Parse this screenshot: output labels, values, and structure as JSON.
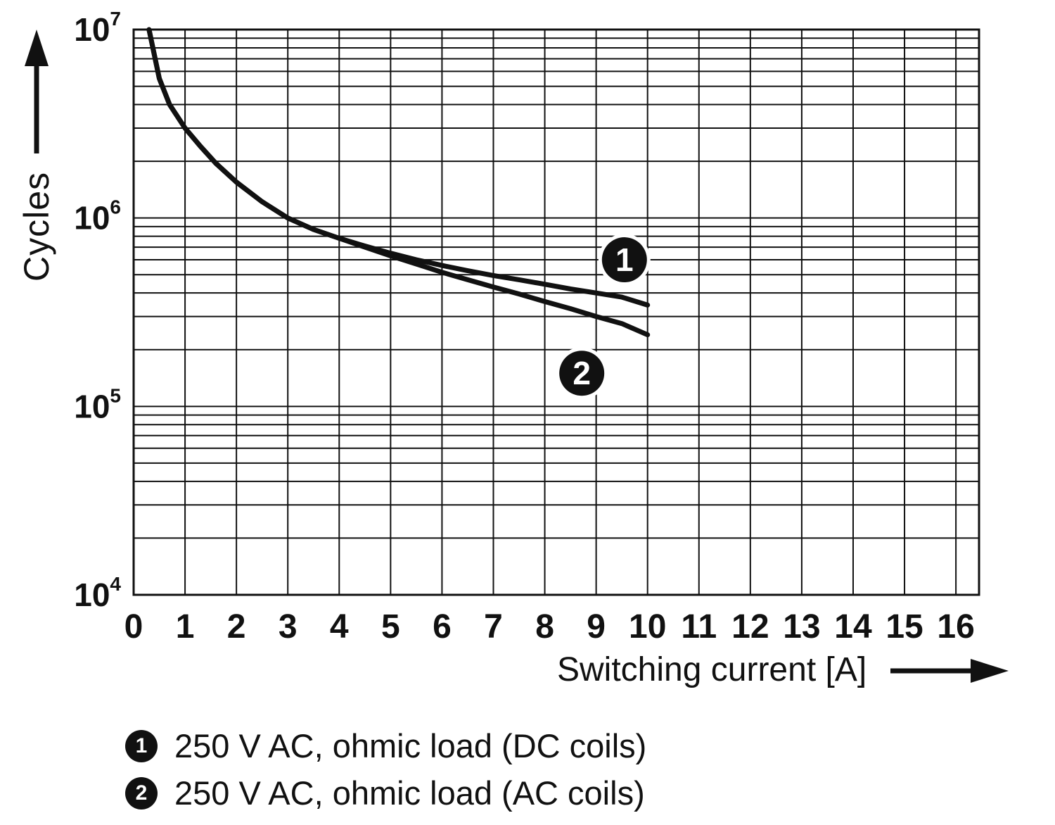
{
  "figure": {
    "y_axis_title": "Cycles",
    "x_axis_title": "Switching current [A]"
  },
  "legend": {
    "items": [
      {
        "marker": "1",
        "label": "250 V AC, ohmic load (DC coils)"
      },
      {
        "marker": "2",
        "label": "250 V AC, ohmic load (AC coils)"
      }
    ]
  },
  "chart_data": {
    "type": "line",
    "title": "",
    "xlabel": "Switching current [A]",
    "ylabel": "Cycles",
    "x_ticks": [
      0,
      1,
      2,
      3,
      4,
      5,
      6,
      7,
      8,
      9,
      10,
      11,
      12,
      13,
      14,
      15,
      16
    ],
    "xlim": [
      0,
      16.45
    ],
    "y_scale": "log",
    "ylim": [
      10000,
      10000000
    ],
    "y_decades": [
      7,
      6,
      5,
      4
    ],
    "grid": true,
    "legend_position": "below",
    "series": [
      {
        "name": "250 V AC, ohmic load (DC coils)",
        "points": [
          [
            0.3,
            10000000
          ],
          [
            0.5,
            5500000
          ],
          [
            0.7,
            4000000
          ],
          [
            1.0,
            3000000
          ],
          [
            1.3,
            2400000
          ],
          [
            1.6,
            1950000
          ],
          [
            2.0,
            1550000
          ],
          [
            2.5,
            1220000
          ],
          [
            3.0,
            1000000
          ],
          [
            3.5,
            870000
          ],
          [
            4.0,
            780000
          ],
          [
            4.5,
            710000
          ],
          [
            5.0,
            650000
          ],
          [
            5.5,
            600000
          ],
          [
            6.0,
            560000
          ],
          [
            6.5,
            525000
          ],
          [
            7.0,
            495000
          ],
          [
            7.5,
            470000
          ],
          [
            8.0,
            445000
          ],
          [
            8.5,
            420000
          ],
          [
            9.0,
            400000
          ],
          [
            9.5,
            380000
          ],
          [
            10.0,
            345000
          ]
        ]
      },
      {
        "name": "250 V AC, ohmic load (AC coils)",
        "points": [
          [
            0.3,
            10000000
          ],
          [
            0.5,
            5500000
          ],
          [
            0.7,
            4000000
          ],
          [
            1.0,
            3000000
          ],
          [
            1.3,
            2400000
          ],
          [
            1.6,
            1950000
          ],
          [
            2.0,
            1550000
          ],
          [
            2.5,
            1220000
          ],
          [
            3.0,
            1000000
          ],
          [
            3.5,
            870000
          ],
          [
            4.0,
            780000
          ],
          [
            4.5,
            700000
          ],
          [
            5.0,
            630000
          ],
          [
            5.5,
            570000
          ],
          [
            6.0,
            515000
          ],
          [
            6.5,
            470000
          ],
          [
            7.0,
            430000
          ],
          [
            7.5,
            395000
          ],
          [
            8.0,
            360000
          ],
          [
            8.5,
            330000
          ],
          [
            9.0,
            300000
          ],
          [
            9.5,
            275000
          ],
          [
            10.0,
            240000
          ]
        ]
      }
    ],
    "markers": [
      {
        "label": "1",
        "x": 9.55,
        "y": 600000
      },
      {
        "label": "2",
        "x": 8.72,
        "y": 150000
      }
    ],
    "colors": {
      "line": "#111111",
      "grid": "#111111",
      "background": "#ffffff"
    }
  }
}
